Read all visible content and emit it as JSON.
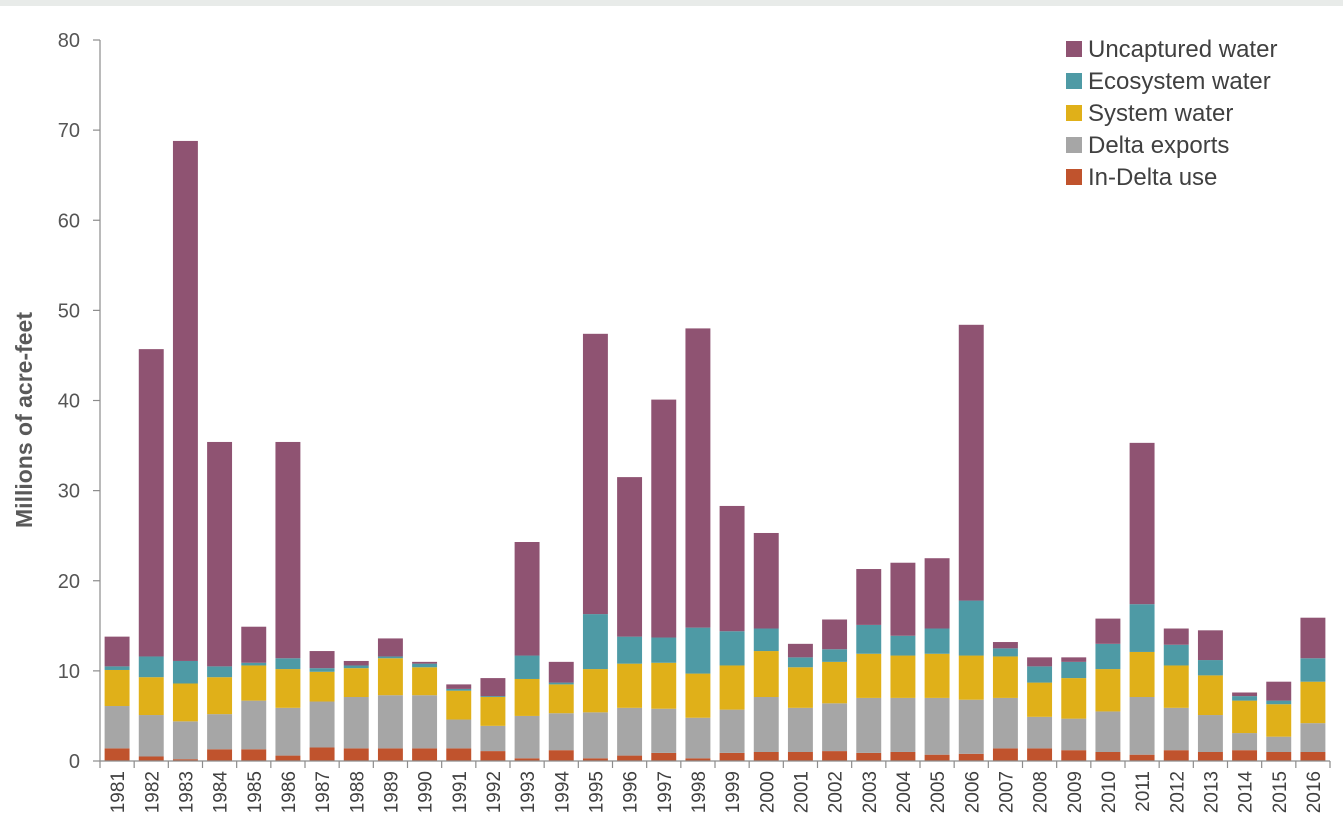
{
  "chart_data": {
    "type": "bar",
    "stacked": true,
    "title": "",
    "xlabel": "",
    "ylabel": "Millions of acre-feet",
    "ylim": [
      0,
      80
    ],
    "yticks": [
      0,
      10,
      20,
      30,
      40,
      50,
      60,
      70,
      80
    ],
    "grid": false,
    "legend_position": "top-right",
    "categories": [
      "1981",
      "1982",
      "1983",
      "1984",
      "1985",
      "1986",
      "1987",
      "1988",
      "1989",
      "1990",
      "1991",
      "1992",
      "1993",
      "1994",
      "1995",
      "1996",
      "1997",
      "1998",
      "1999",
      "2000",
      "2001",
      "2002",
      "2003",
      "2004",
      "2005",
      "2006",
      "2007",
      "2008",
      "2009",
      "2010",
      "2011",
      "2012",
      "2013",
      "2014",
      "2015",
      "2016"
    ],
    "series": [
      {
        "name": "In-Delta use",
        "color": "#c0532d",
        "values": [
          1.4,
          0.5,
          0.2,
          1.3,
          1.3,
          0.6,
          1.5,
          1.4,
          1.4,
          1.4,
          1.4,
          1.1,
          0.3,
          1.2,
          0.3,
          0.6,
          0.9,
          0.3,
          0.9,
          1.0,
          1.0,
          1.1,
          0.9,
          1.0,
          0.7,
          0.8,
          1.4,
          1.4,
          1.2,
          1.0,
          0.7,
          1.2,
          1.0,
          1.2,
          1.0,
          1.0
        ]
      },
      {
        "name": "Delta exports",
        "color": "#a6a6a6",
        "values": [
          4.7,
          4.6,
          4.2,
          3.9,
          5.4,
          5.3,
          5.1,
          5.7,
          5.9,
          5.9,
          3.2,
          2.8,
          4.7,
          4.1,
          5.1,
          5.3,
          4.9,
          4.5,
          4.8,
          6.1,
          4.9,
          5.3,
          6.1,
          6.0,
          6.3,
          6.0,
          5.6,
          3.5,
          3.5,
          4.5,
          6.4,
          4.7,
          4.1,
          1.9,
          1.7,
          3.2
        ]
      },
      {
        "name": "System water",
        "color": "#e0b019",
        "values": [
          4.0,
          4.2,
          4.2,
          4.1,
          3.9,
          4.3,
          3.3,
          3.2,
          4.1,
          3.1,
          3.2,
          3.2,
          4.1,
          3.2,
          4.8,
          4.9,
          5.1,
          4.9,
          4.9,
          5.1,
          4.5,
          4.6,
          4.9,
          4.7,
          4.9,
          4.9,
          4.6,
          3.8,
          4.5,
          4.7,
          5.0,
          4.7,
          4.4,
          3.6,
          3.6,
          4.6
        ]
      },
      {
        "name": "Ecosystem water",
        "color": "#4e9aa5",
        "values": [
          0.4,
          2.3,
          2.5,
          1.2,
          0.3,
          1.2,
          0.4,
          0.3,
          0.2,
          0.4,
          0.2,
          0.1,
          2.6,
          0.2,
          6.1,
          3.0,
          2.8,
          5.1,
          3.8,
          2.5,
          1.1,
          1.4,
          3.2,
          2.2,
          2.8,
          6.1,
          0.9,
          1.8,
          1.8,
          2.8,
          5.3,
          2.3,
          1.7,
          0.5,
          0.4,
          2.6
        ]
      },
      {
        "name": "Uncaptured water",
        "color": "#8f5372",
        "values": [
          3.3,
          34.1,
          57.7,
          24.9,
          4.0,
          24.0,
          1.9,
          0.5,
          2.0,
          0.2,
          0.5,
          2.0,
          12.6,
          2.3,
          31.1,
          17.7,
          26.4,
          33.2,
          13.9,
          10.6,
          1.5,
          3.3,
          6.2,
          8.1,
          7.8,
          30.6,
          0.7,
          1.0,
          0.5,
          2.8,
          17.9,
          1.8,
          3.3,
          0.4,
          2.1,
          4.5
        ]
      }
    ]
  }
}
